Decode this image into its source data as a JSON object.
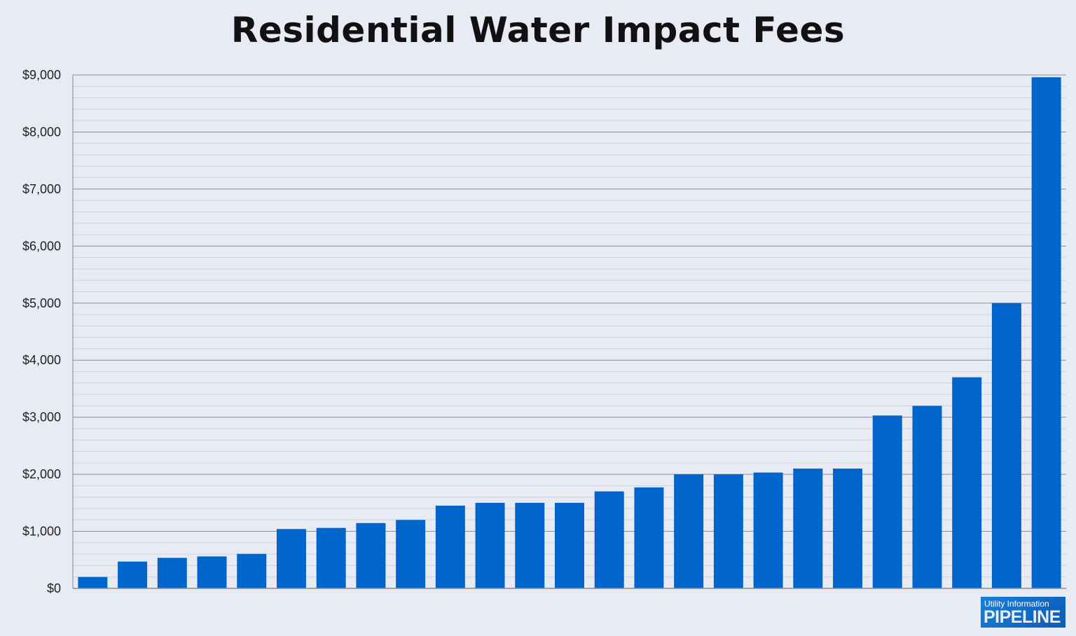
{
  "chart_data": {
    "type": "bar",
    "title": "Residential Water Impact Fees",
    "xlabel": "",
    "ylabel": "",
    "ylim": [
      0,
      9000
    ],
    "y_ticks": [
      "$0",
      "$1,000",
      "$2,000",
      "$3,000",
      "$4,000",
      "$5,000",
      "$6,000",
      "$7,000",
      "$8,000",
      "$9,000"
    ],
    "y_tick_values": [
      0,
      1000,
      2000,
      3000,
      4000,
      5000,
      6000,
      7000,
      8000,
      9000
    ],
    "minor_grid_step": 200,
    "grid": true,
    "bar_color": "#0066cc",
    "values": [
      200,
      470,
      535,
      560,
      605,
      1040,
      1060,
      1145,
      1200,
      1450,
      1500,
      1500,
      1500,
      1700,
      1770,
      2000,
      2000,
      2030,
      2100,
      2100,
      3030,
      3200,
      3700,
      5000,
      8960
    ]
  },
  "logo": {
    "line1": "Utility Information",
    "line2": "PIPELINE"
  }
}
